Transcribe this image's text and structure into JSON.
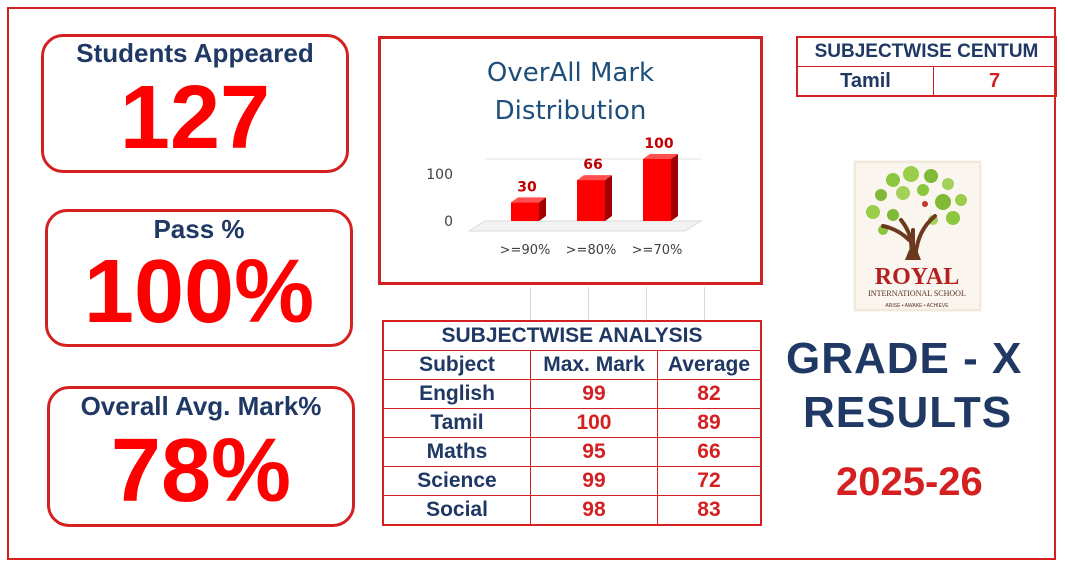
{
  "stats": [
    {
      "label": "Students Appeared",
      "value": "127"
    },
    {
      "label": "Pass %",
      "value": "100%"
    },
    {
      "label": "Overall Avg. Mark%",
      "value": "78%"
    }
  ],
  "chart_data": {
    "type": "bar",
    "title_line1": "OverAll Mark",
    "title_line2": "Distribution",
    "categories": [
      ">=90%",
      ">=80%",
      ">=70%"
    ],
    "values": [
      30,
      66,
      100
    ],
    "data_labels": [
      "30",
      "66",
      "100"
    ],
    "yticks": [
      "100",
      "0"
    ],
    "ylim": [
      0,
      100
    ],
    "bar_color": "#ff0000",
    "label_color": "#c00000"
  },
  "centum": {
    "header": "SUBJECTWISE CENTUM",
    "subject": "Tamil",
    "count": "7"
  },
  "analysis": {
    "title": "SUBJECTWISE ANALYSIS",
    "columns": [
      "Subject",
      "Max. Mark",
      "Average"
    ],
    "rows": [
      [
        "English",
        "99",
        "82"
      ],
      [
        "Tamil",
        "100",
        "89"
      ],
      [
        "Maths",
        "95",
        "66"
      ],
      [
        "Science",
        "99",
        "72"
      ],
      [
        "Social",
        "98",
        "83"
      ]
    ]
  },
  "logo": {
    "name": "ROYAL",
    "subtitle": "INTERNATIONAL SCHOOL",
    "tagline": "ARISE • AWAKE • ACHIEVE"
  },
  "heading": {
    "grade": "GRADE - X",
    "results": "RESULTS",
    "year": "2025-26"
  },
  "colors": {
    "accent": "#d42020",
    "navy": "#1f3864",
    "bright_red": "#ff0000"
  }
}
